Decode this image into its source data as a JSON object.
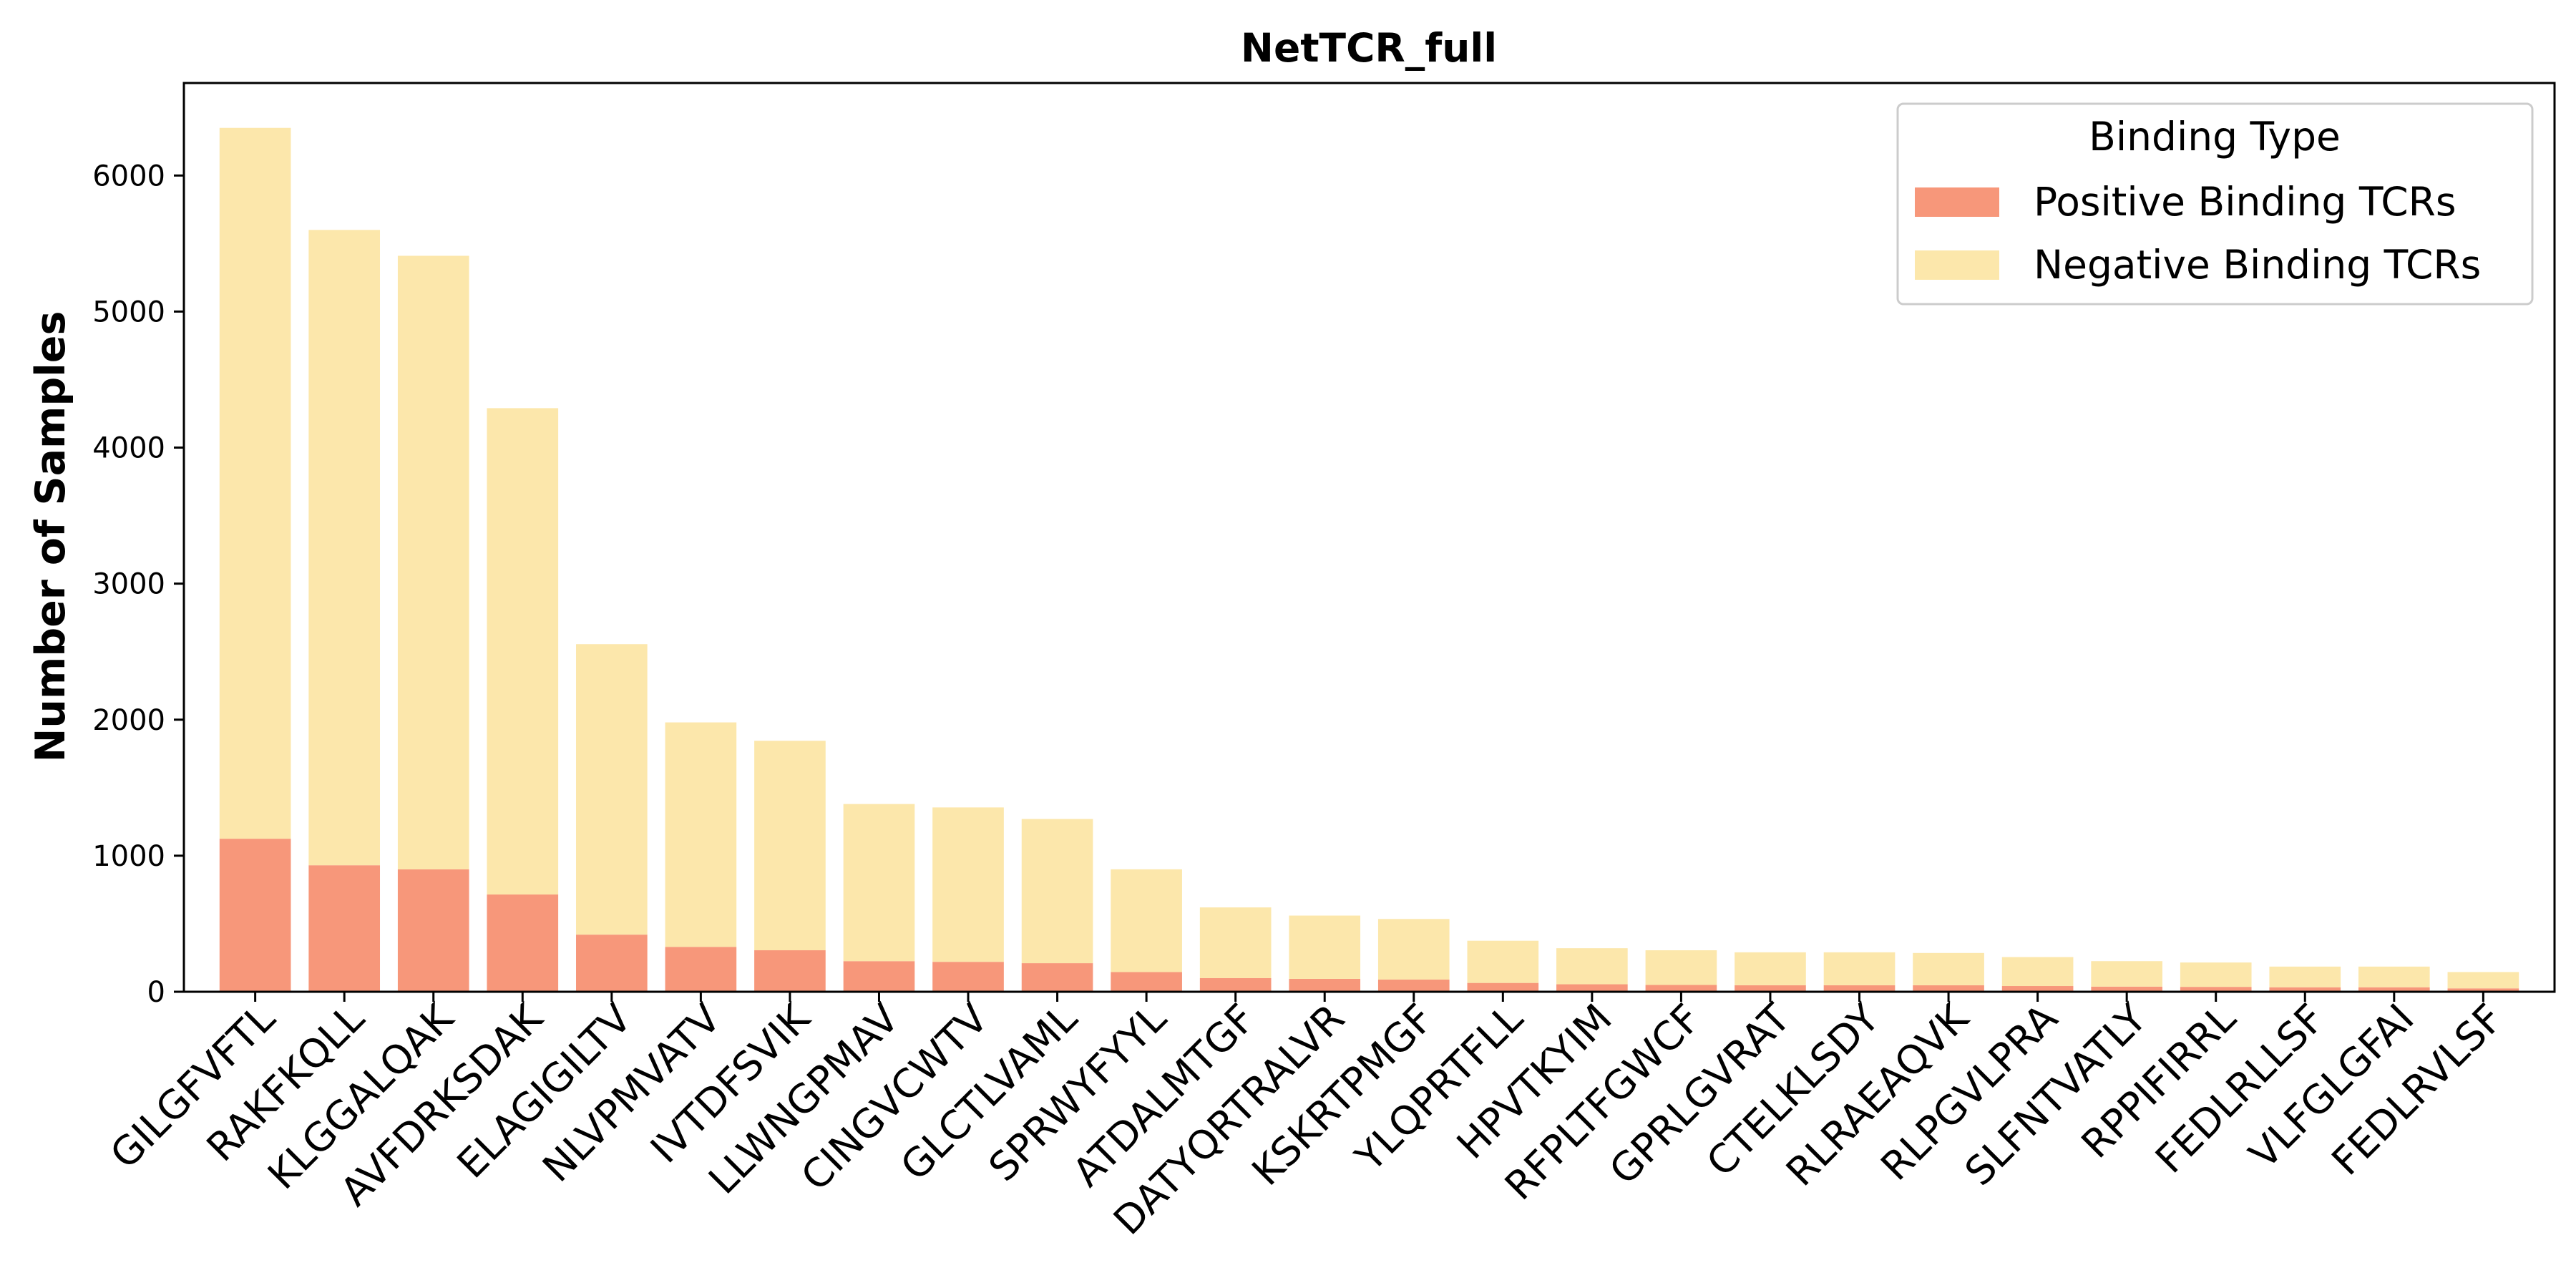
{
  "chart_data": {
    "type": "bar",
    "stacked": true,
    "title": "NetTCR_full",
    "xlabel": "",
    "ylabel": "Number of Samples",
    "ylim": [
      0,
      6680
    ],
    "yticks": [
      0,
      1000,
      2000,
      3000,
      4000,
      5000,
      6000
    ],
    "grid": false,
    "legend": {
      "title": "Binding Type",
      "placement": "top-right"
    },
    "categories": [
      "GILGFVFTL",
      "RAKFKQLL",
      "KLGGALQAK",
      "AVFDRKSDAK",
      "ELAGIGILTV",
      "NLVPMVATV",
      "IVTDFSVIK",
      "LLWNGPMAV",
      "CINGVCWTV",
      "GLCTLVAML",
      "SPRWYFYYL",
      "ATDALMTGF",
      "DATYQRTRALVR",
      "KSKRTPMGF",
      "YLQPRTFLL",
      "HPVTKYIM",
      "RFPLTFGWCF",
      "GPRLGVRAT",
      "CTELKLSDY",
      "RLRAEAQVK",
      "RLPGVLPRA",
      "SLFNTVATLY",
      "RPPIFIRRL",
      "FEDLRLLSF",
      "VLFGLGFAI",
      "FEDLRVLSF"
    ],
    "series": [
      {
        "name": "Positive Binding TCRs",
        "color": "#f7977a",
        "values": [
          1125,
          930,
          900,
          715,
          420,
          330,
          305,
          225,
          220,
          210,
          145,
          100,
          95,
          90,
          65,
          55,
          50,
          48,
          48,
          48,
          42,
          38,
          36,
          33,
          33,
          25
        ]
      },
      {
        "name": "Negative Binding TCRs",
        "color": "#fce7ab",
        "values": [
          5225,
          4670,
          4510,
          3575,
          2135,
          1650,
          1540,
          1155,
          1135,
          1060,
          755,
          520,
          465,
          445,
          310,
          265,
          255,
          242,
          242,
          237,
          213,
          187,
          179,
          152,
          152,
          120
        ]
      }
    ]
  }
}
